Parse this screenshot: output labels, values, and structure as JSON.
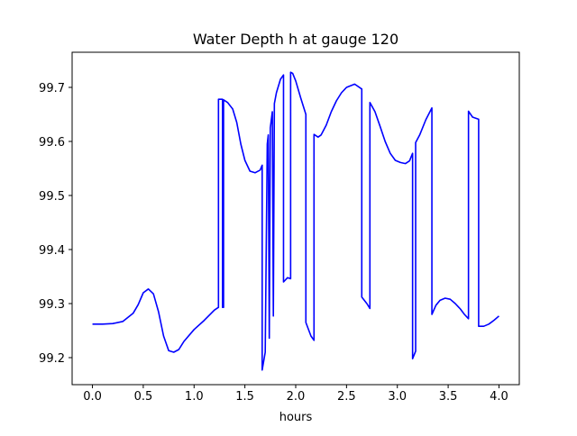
{
  "chart_data": {
    "type": "line",
    "title": "Water Depth h at gauge 120",
    "xlabel": "hours",
    "ylabel": "",
    "xlim": [
      -0.2,
      4.2
    ],
    "ylim": [
      99.15,
      99.765
    ],
    "x_ticks": [
      0.0,
      0.5,
      1.0,
      1.5,
      2.0,
      2.5,
      3.0,
      3.5,
      4.0
    ],
    "x_tick_labels": [
      "0.0",
      "0.5",
      "1.0",
      "1.5",
      "2.0",
      "2.5",
      "3.0",
      "3.5",
      "4.0"
    ],
    "y_ticks": [
      99.2,
      99.3,
      99.4,
      99.5,
      99.6,
      99.7
    ],
    "y_tick_labels": [
      "99.2",
      "99.3",
      "99.4",
      "99.5",
      "99.6",
      "99.7"
    ],
    "grid": false,
    "legend": "none",
    "series": [
      {
        "color": "#0000ff",
        "points": [
          [
            0.0,
            99.262
          ],
          [
            0.1,
            99.262
          ],
          [
            0.2,
            99.263
          ],
          [
            0.3,
            99.267
          ],
          [
            0.4,
            99.282
          ],
          [
            0.45,
            99.298
          ],
          [
            0.5,
            99.32
          ],
          [
            0.55,
            99.327
          ],
          [
            0.6,
            99.318
          ],
          [
            0.65,
            99.285
          ],
          [
            0.7,
            99.24
          ],
          [
            0.75,
            99.213
          ],
          [
            0.8,
            99.21
          ],
          [
            0.85,
            99.215
          ],
          [
            0.9,
            99.23
          ],
          [
            1.0,
            99.252
          ],
          [
            1.1,
            99.269
          ],
          [
            1.2,
            99.288
          ],
          [
            1.24,
            99.293
          ],
          [
            1.24,
            99.678
          ],
          [
            1.28,
            99.678
          ],
          [
            1.28,
            99.293
          ],
          [
            1.29,
            99.293
          ],
          [
            1.29,
            99.677
          ],
          [
            1.33,
            99.672
          ],
          [
            1.38,
            99.66
          ],
          [
            1.42,
            99.635
          ],
          [
            1.46,
            99.595
          ],
          [
            1.5,
            99.565
          ],
          [
            1.55,
            99.545
          ],
          [
            1.6,
            99.542
          ],
          [
            1.65,
            99.547
          ],
          [
            1.67,
            99.556
          ],
          [
            1.67,
            99.177
          ],
          [
            1.7,
            99.21
          ],
          [
            1.72,
            99.595
          ],
          [
            1.73,
            99.612
          ],
          [
            1.74,
            99.236
          ],
          [
            1.75,
            99.625
          ],
          [
            1.77,
            99.655
          ],
          [
            1.78,
            99.277
          ],
          [
            1.79,
            99.67
          ],
          [
            1.81,
            99.69
          ],
          [
            1.85,
            99.715
          ],
          [
            1.88,
            99.723
          ],
          [
            1.88,
            99.34
          ],
          [
            1.92,
            99.348
          ],
          [
            1.95,
            99.346
          ],
          [
            1.95,
            99.728
          ],
          [
            1.97,
            99.726
          ],
          [
            2.0,
            99.712
          ],
          [
            2.05,
            99.68
          ],
          [
            2.1,
            99.65
          ],
          [
            2.1,
            99.265
          ],
          [
            2.15,
            99.24
          ],
          [
            2.18,
            99.232
          ],
          [
            2.18,
            99.613
          ],
          [
            2.22,
            99.608
          ],
          [
            2.25,
            99.612
          ],
          [
            2.3,
            99.63
          ],
          [
            2.35,
            99.655
          ],
          [
            2.4,
            99.675
          ],
          [
            2.45,
            99.69
          ],
          [
            2.5,
            99.7
          ],
          [
            2.58,
            99.706
          ],
          [
            2.65,
            99.697
          ],
          [
            2.65,
            99.312
          ],
          [
            2.7,
            99.3
          ],
          [
            2.73,
            99.291
          ],
          [
            2.73,
            99.672
          ],
          [
            2.78,
            99.655
          ],
          [
            2.83,
            99.628
          ],
          [
            2.88,
            99.6
          ],
          [
            2.93,
            99.578
          ],
          [
            2.98,
            99.565
          ],
          [
            3.03,
            99.561
          ],
          [
            3.08,
            99.559
          ],
          [
            3.12,
            99.564
          ],
          [
            3.15,
            99.578
          ],
          [
            3.15,
            99.198
          ],
          [
            3.18,
            99.212
          ],
          [
            3.18,
            99.598
          ],
          [
            3.22,
            99.612
          ],
          [
            3.28,
            99.64
          ],
          [
            3.34,
            99.662
          ],
          [
            3.34,
            99.28
          ],
          [
            3.38,
            99.297
          ],
          [
            3.42,
            99.306
          ],
          [
            3.47,
            99.31
          ],
          [
            3.52,
            99.308
          ],
          [
            3.57,
            99.3
          ],
          [
            3.62,
            99.29
          ],
          [
            3.66,
            99.28
          ],
          [
            3.7,
            99.272
          ],
          [
            3.7,
            99.656
          ],
          [
            3.74,
            99.645
          ],
          [
            3.8,
            99.641
          ],
          [
            3.8,
            99.258
          ],
          [
            3.85,
            99.258
          ],
          [
            3.9,
            99.262
          ],
          [
            3.95,
            99.269
          ],
          [
            4.0,
            99.277
          ]
        ]
      }
    ]
  }
}
